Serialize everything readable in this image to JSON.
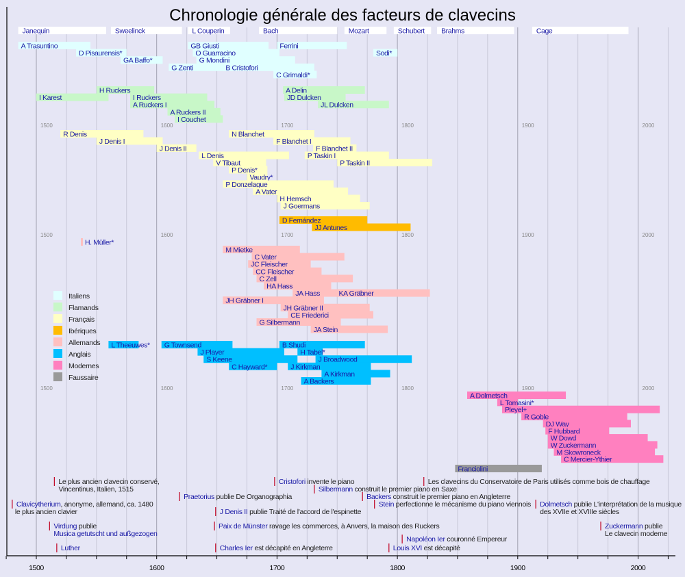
{
  "chart_data": {
    "type": "timeline",
    "title": "Chronologie générale des facteurs de clavecins",
    "xlim": [
      1475,
      2030
    ],
    "axis_ticks": [
      1500,
      1600,
      1700,
      1800,
      1900,
      2000
    ],
    "minor_tick_step": 25,
    "grid": true,
    "mid_year_labels": [
      "1500",
      "1600",
      "1700",
      "1800",
      "1900",
      "2000"
    ],
    "colors": {
      "Italiens": "#e0ffff",
      "Flamands": "#c8f7c8",
      "Français": "#ffffc4",
      "Ibériques": "#ffbb00",
      "Allemands": "#ffc0c0",
      "Anglais": "#00bfff",
      "Modernes": "#ff80bf",
      "Faussaire": "#999999",
      "era": "#ffffff"
    },
    "legend": {
      "placement": "middle-left",
      "entries": [
        "Italiens",
        "Flamands",
        "Français",
        "Ibériques",
        "Allemands",
        "Anglais",
        "Modernes",
        "Faussaire"
      ]
    },
    "eras": [
      {
        "name": "Janequin",
        "start": 1485,
        "end": 1558
      },
      {
        "name": "Sweelinck",
        "start": 1562,
        "end": 1621
      },
      {
        "name": "L Couperin",
        "start": 1626,
        "end": 1661
      },
      {
        "name": "Bach",
        "start": 1685,
        "end": 1750
      },
      {
        "name": "Mozart",
        "start": 1756,
        "end": 1791
      },
      {
        "name": "Schubert",
        "start": 1797,
        "end": 1828
      },
      {
        "name": "Brahms",
        "start": 1833,
        "end": 1897
      },
      {
        "name": "Cage",
        "start": 1912,
        "end": 1992
      }
    ],
    "makers": [
      {
        "name": "A Trasuntino",
        "group": "Italiens",
        "start": 1485,
        "end": 1545,
        "row": 0
      },
      {
        "name": "D Pisaurensis*",
        "group": "Italiens",
        "start": 1533,
        "end": 1575,
        "row": 1
      },
      {
        "name": "GA Baffo*",
        "group": "Italiens",
        "start": 1570,
        "end": 1605,
        "row": 2
      },
      {
        "name": "GB Giusti",
        "group": "Italiens",
        "start": 1626,
        "end": 1693,
        "row": 0
      },
      {
        "name": "O Guarracino",
        "group": "Italiens",
        "start": 1630,
        "end": 1702,
        "row": 1
      },
      {
        "name": "G Mondini",
        "group": "Italiens",
        "start": 1633,
        "end": 1715,
        "row": 2
      },
      {
        "name": "G Zenti",
        "group": "Italiens",
        "start": 1610,
        "end": 1667,
        "row": 3
      },
      {
        "name": "B Cristofori",
        "group": "Italiens",
        "start": 1655,
        "end": 1731,
        "row": 3
      },
      {
        "name": "Ferrini",
        "group": "Italiens",
        "start": 1700,
        "end": 1758,
        "row": 0
      },
      {
        "name": "C Grimaldi*",
        "group": "Italiens",
        "start": 1697,
        "end": 1733,
        "row": 4
      },
      {
        "name": "Sodi*",
        "group": "Italiens",
        "start": 1780,
        "end": 1800,
        "row": 1
      },
      {
        "name": "H Ruckers",
        "group": "Flamands",
        "start": 1550,
        "end": 1598,
        "row": 6
      },
      {
        "name": "I Karest",
        "group": "Flamands",
        "start": 1500,
        "end": 1560,
        "row": 7
      },
      {
        "name": "I Ruckers",
        "group": "Flamands",
        "start": 1578,
        "end": 1642,
        "row": 7
      },
      {
        "name": "A Ruckers I",
        "group": "Flamands",
        "start": 1578,
        "end": 1648,
        "row": 8
      },
      {
        "name": "A Ruckers II",
        "group": "Flamands",
        "start": 1609,
        "end": 1653,
        "row": 9
      },
      {
        "name": "I Couchet",
        "group": "Flamands",
        "start": 1615,
        "end": 1655,
        "row": 10
      },
      {
        "name": "A Delin",
        "group": "Flamands",
        "start": 1705,
        "end": 1773,
        "row": 6
      },
      {
        "name": "JD Dulcken",
        "group": "Flamands",
        "start": 1706,
        "end": 1757,
        "row": 7
      },
      {
        "name": "JL Dulcken",
        "group": "Flamands",
        "start": 1734,
        "end": 1793,
        "row": 8
      },
      {
        "name": "R Denis",
        "group": "Français",
        "start": 1520,
        "end": 1589,
        "row": 12
      },
      {
        "name": "J Denis I",
        "group": "Français",
        "start": 1550,
        "end": 1605,
        "row": 13
      },
      {
        "name": "J Denis II",
        "group": "Français",
        "start": 1600,
        "end": 1633,
        "row": 14
      },
      {
        "name": "L Denis",
        "group": "Français",
        "start": 1635,
        "end": 1710,
        "row": 15
      },
      {
        "name": "V Tibaut",
        "group": "Français",
        "start": 1647,
        "end": 1691,
        "row": 16
      },
      {
        "name": "N Blanchet",
        "group": "Français",
        "start": 1660,
        "end": 1731,
        "row": 12
      },
      {
        "name": "F Blanchet I",
        "group": "Français",
        "start": 1697,
        "end": 1761,
        "row": 13
      },
      {
        "name": "F Blanchet II",
        "group": "Français",
        "start": 1730,
        "end": 1766,
        "row": 14
      },
      {
        "name": "P Taskin I",
        "group": "Français",
        "start": 1723,
        "end": 1793,
        "row": 15
      },
      {
        "name": "P Taskin II",
        "group": "Français",
        "start": 1750,
        "end": 1829,
        "row": 16
      },
      {
        "name": "P Denis*",
        "group": "Français",
        "start": 1660,
        "end": 1692,
        "row": 17
      },
      {
        "name": "Vaudry*",
        "group": "Français",
        "start": 1675,
        "end": 1692,
        "row": 18
      },
      {
        "name": "P Donzelague",
        "group": "Français",
        "start": 1655,
        "end": 1747,
        "row": 19
      },
      {
        "name": "A Vater",
        "group": "Français",
        "start": 1680,
        "end": 1759,
        "row": 20
      },
      {
        "name": "H Hemsch",
        "group": "Français",
        "start": 1700,
        "end": 1769,
        "row": 21
      },
      {
        "name": "J Goermans",
        "group": "Français",
        "start": 1703,
        "end": 1777,
        "row": 22
      },
      {
        "name": "D Fernández",
        "group": "Ibériques",
        "start": 1702,
        "end": 1775,
        "row": 24
      },
      {
        "name": "JJ Antunes",
        "group": "Ibériques",
        "start": 1729,
        "end": 1811,
        "row": 25
      },
      {
        "name": "H. Müller*",
        "group": "Allemands",
        "start": 1537,
        "end": 1538,
        "row": 27
      },
      {
        "name": "M Mietke",
        "group": "Allemands",
        "start": 1655,
        "end": 1719,
        "row": 28
      },
      {
        "name": "C Vater",
        "group": "Allemands",
        "start": 1679,
        "end": 1756,
        "row": 29
      },
      {
        "name": "JC Fleischer",
        "group": "Allemands",
        "start": 1676,
        "end": 1728,
        "row": 30
      },
      {
        "name": "CC Fleischer",
        "group": "Allemands",
        "start": 1680,
        "end": 1737,
        "row": 31
      },
      {
        "name": "C Zell",
        "group": "Allemands",
        "start": 1683,
        "end": 1763,
        "row": 32
      },
      {
        "name": "HA Hass",
        "group": "Allemands",
        "start": 1689,
        "end": 1745,
        "row": 33
      },
      {
        "name": "JA Hass",
        "group": "Allemands",
        "start": 1713,
        "end": 1775,
        "row": 34
      },
      {
        "name": "KA Gräbner",
        "group": "Allemands",
        "start": 1749,
        "end": 1827,
        "row": 34
      },
      {
        "name": "JH Gräbner I",
        "group": "Allemands",
        "start": 1655,
        "end": 1739,
        "row": 35
      },
      {
        "name": "JH Gräbner II",
        "group": "Allemands",
        "start": 1703,
        "end": 1777,
        "row": 36
      },
      {
        "name": "CE Friederici",
        "group": "Allemands",
        "start": 1709,
        "end": 1780,
        "row": 37
      },
      {
        "name": "G Silbermann",
        "group": "Allemands",
        "start": 1683,
        "end": 1753,
        "row": 38
      },
      {
        "name": "JA Stein",
        "group": "Allemands",
        "start": 1728,
        "end": 1792,
        "row": 39
      },
      {
        "name": "L Theeuwes*",
        "group": "Anglais",
        "start": 1560,
        "end": 1585,
        "row": 41
      },
      {
        "name": "G Townsend",
        "group": "Anglais",
        "start": 1604,
        "end": 1663,
        "row": 41
      },
      {
        "name": "B Shudi",
        "group": "Anglais",
        "start": 1702,
        "end": 1773,
        "row": 41
      },
      {
        "name": "J Player",
        "group": "Anglais",
        "start": 1634,
        "end": 1706,
        "row": 42
      },
      {
        "name": "H Tabel*",
        "group": "Anglais",
        "start": 1717,
        "end": 1738,
        "row": 42
      },
      {
        "name": "S Keene",
        "group": "Anglais",
        "start": 1639,
        "end": 1717,
        "row": 43
      },
      {
        "name": "J Broadwood",
        "group": "Anglais",
        "start": 1732,
        "end": 1812,
        "row": 43
      },
      {
        "name": "C Hayward*",
        "group": "Anglais",
        "start": 1660,
        "end": 1700,
        "row": 44
      },
      {
        "name": "J Kirkman",
        "group": "Anglais",
        "start": 1709,
        "end": 1778,
        "row": 44
      },
      {
        "name": "A Kirkman",
        "group": "Anglais",
        "start": 1737,
        "end": 1794,
        "row": 45
      },
      {
        "name": "A Backers",
        "group": "Anglais",
        "start": 1720,
        "end": 1778,
        "row": 46
      },
      {
        "name": "A Dolmetsch",
        "group": "Modernes",
        "start": 1858,
        "end": 1940,
        "row": 48
      },
      {
        "name": "L Tomasini*",
        "group": "Modernes",
        "start": 1883,
        "end": 1900,
        "row": 49
      },
      {
        "name": "Pleyel+",
        "group": "Modernes",
        "start": 1887,
        "end": 2018,
        "row": 50
      },
      {
        "name": "R Goble",
        "group": "Modernes",
        "start": 1903,
        "end": 1991,
        "row": 51
      },
      {
        "name": "DJ Way",
        "group": "Modernes",
        "start": 1921,
        "end": 1994,
        "row": 52
      },
      {
        "name": "F Hubbard",
        "group": "Modernes",
        "start": 1923,
        "end": 1976,
        "row": 53
      },
      {
        "name": "W Dowd",
        "group": "Modernes",
        "start": 1925,
        "end": 2008,
        "row": 54
      },
      {
        "name": "W Zuckermann",
        "group": "Modernes",
        "start": 1925,
        "end": 2016,
        "row": 55
      },
      {
        "name": "M Skowroneck",
        "group": "Modernes",
        "start": 1930,
        "end": 2014,
        "row": 56
      },
      {
        "name": "C Mercier-Ythier",
        "group": "Modernes",
        "start": 1936,
        "end": 2021,
        "row": 57
      },
      {
        "name": "Franciolini",
        "group": "Faussaire",
        "start": 1848,
        "end": 1920,
        "row": 58
      }
    ],
    "events": [
      {
        "year": 1515,
        "line": 0,
        "link": "",
        "text": "Le plus ancien clavecin conservé,",
        "text2": "Vincentinus, Italien, 1515"
      },
      {
        "year": 1698,
        "line": 0,
        "link": "Cristofori",
        "text": " invente le piano",
        "text2": ""
      },
      {
        "year": 1822,
        "line": 0,
        "link": "",
        "text": "Les clavecins du Conservatoire de Paris utilisés comme bois de chauffage",
        "text2": ""
      },
      {
        "year": 1731,
        "line": 1,
        "link": "Silbermann",
        "text": " construit le premier piano en Saxe",
        "text2": ""
      },
      {
        "year": 1619,
        "line": 2,
        "link": "Praetorius",
        "text": " publie De Organographia",
        "text2": ""
      },
      {
        "year": 1771,
        "line": 2,
        "link": "Backers",
        "text": " construit le premier piano en Angleterre",
        "text2": ""
      },
      {
        "year": 1480,
        "line": 3,
        "link": "Clavicytherium",
        "text": ", anonyme, allemand, ca. 1480",
        "text2": "le plus ancien clavier"
      },
      {
        "year": 1781,
        "line": 3,
        "link": "Stein",
        "text": " perfectionne le mécanisme du piano viennois",
        "text2": ""
      },
      {
        "year": 1915,
        "line": 3,
        "link": "Dolmetsch",
        "text": " publie L'interprétation de la musique",
        "text2": "des XVIIe et XVIIIe siècles"
      },
      {
        "year": 1649,
        "line": 4,
        "link": "J Denis II",
        "text": " publie Traité de l'accord de l'espinette",
        "text2": ""
      },
      {
        "year": 1511,
        "line": 5,
        "link": "Virdung",
        "text": " publie",
        "text2link": "Musica getutscht und außgezogen"
      },
      {
        "year": 1648,
        "line": 5,
        "link": "Paix de Münster",
        "text": " ravage les commerces, à Anvers, la maison des Ruckers",
        "text2": ""
      },
      {
        "year": 1969,
        "line": 5,
        "link": "Zuckermann",
        "text": "  publie",
        "text2": "Le clavecin moderne"
      },
      {
        "year": 1804,
        "line": 6,
        "link": "Napoléon Ier",
        "text": " couronné Empereur",
        "text2": ""
      },
      {
        "year": 1517,
        "line": 7,
        "link": "Luther",
        "text": "",
        "text2": ""
      },
      {
        "year": 1649,
        "line": 7,
        "link": "Charles Ier",
        "text": " est décapité en Angleterre",
        "text2": ""
      },
      {
        "year": 1793,
        "line": 7,
        "link": "Louis XVI",
        "text": " est décapité",
        "text2": ""
      }
    ]
  }
}
